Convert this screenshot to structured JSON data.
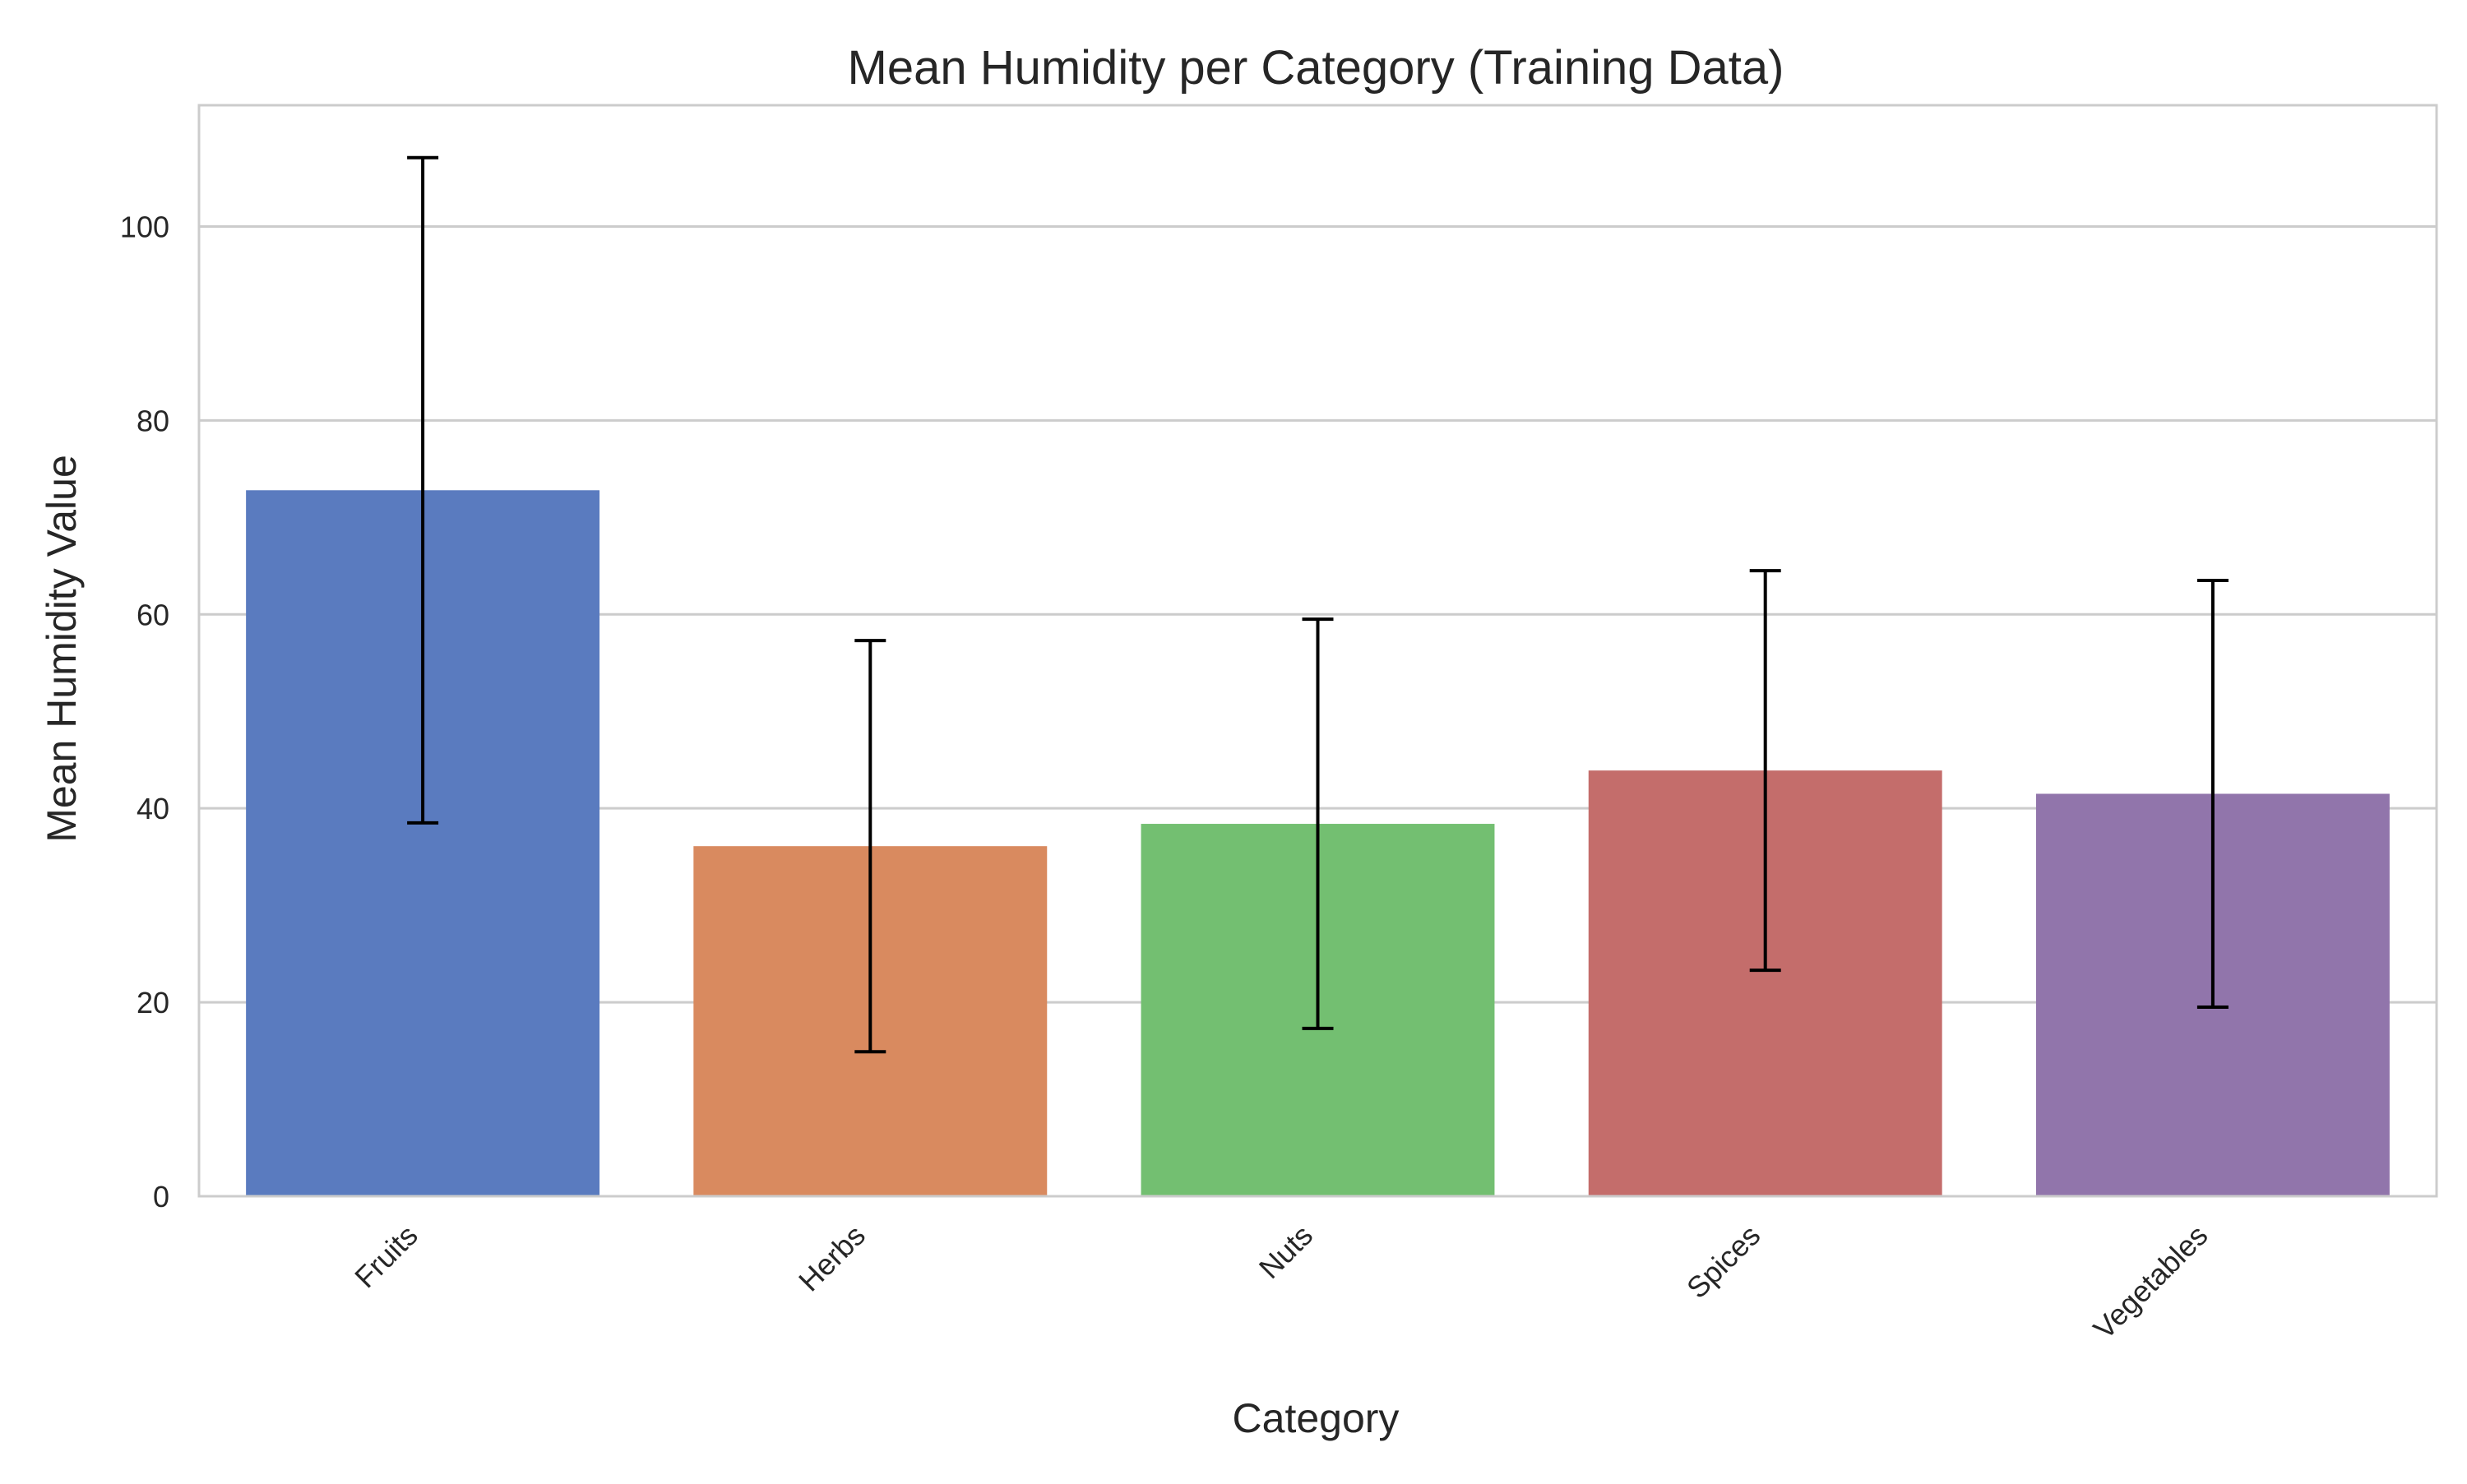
{
  "chart_data": {
    "type": "bar",
    "title": "Mean Humidity per Category (Training Data)",
    "xlabel": "Category",
    "ylabel": "Mean Humidity Value",
    "categories": [
      "Fruits",
      "Herbs",
      "Nuts",
      "Spices",
      "Vegetables"
    ],
    "values": [
      72.8,
      36.1,
      38.4,
      43.9,
      41.5
    ],
    "error": [
      34.3,
      21.2,
      21.1,
      20.6,
      22.0
    ],
    "colors": [
      "#5a7bbf",
      "#d98a5f",
      "#73bf71",
      "#c46d6b",
      "#9175ab"
    ],
    "ylim": [
      0,
      112.5
    ],
    "yticks": [
      0,
      20,
      40,
      60,
      80,
      100
    ],
    "grid": "horizontal",
    "legend": "none"
  }
}
